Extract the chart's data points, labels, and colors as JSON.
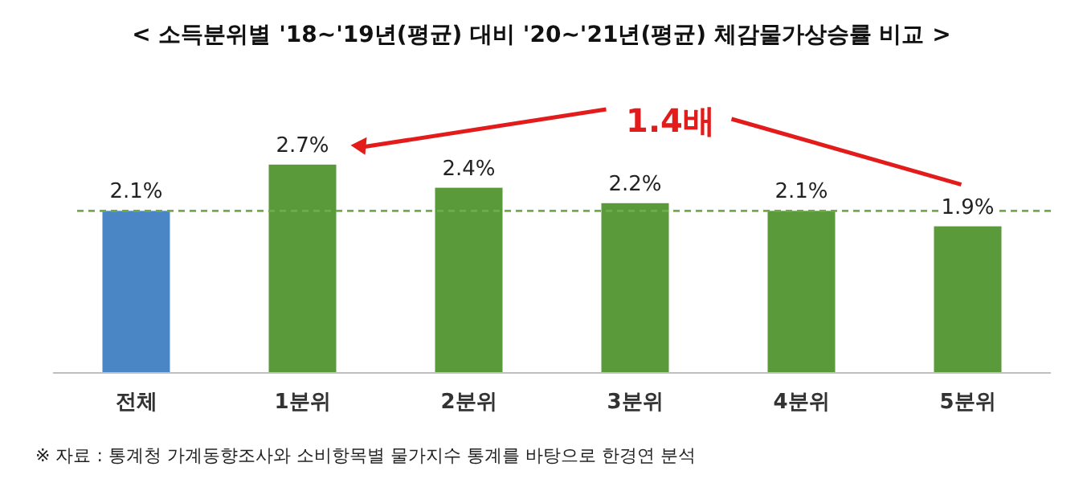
{
  "chart_data": {
    "type": "bar",
    "title": "< 소득분위별 '18~'19년(평균) 대비 '20~'21년(평균) 체감물가상승률 비교 >",
    "categories": [
      "전체",
      "1분위",
      "2분위",
      "3분위",
      "4분위",
      "5분위"
    ],
    "values": [
      2.1,
      2.7,
      2.4,
      2.2,
      2.1,
      1.9
    ],
    "colors": [
      "#4a86c5",
      "#5a9a3a",
      "#5a9a3a",
      "#5a9a3a",
      "#5a9a3a",
      "#5a9a3a"
    ],
    "value_labels": [
      "2.1%",
      "2.7%",
      "2.4%",
      "2.2%",
      "2.1%",
      "1.9%"
    ],
    "tick_labels": "x",
    "ref_lines": [
      {
        "axis": "y",
        "value": 2.1,
        "color": "#70ad47",
        "line_style": "dashed"
      }
    ],
    "annotations": [
      "1.4배",
      "※ 자료 : 통계청 가계동향조사와 소비항목별 물가지수 통계를 바탕으로 한경연 분석"
    ]
  }
}
